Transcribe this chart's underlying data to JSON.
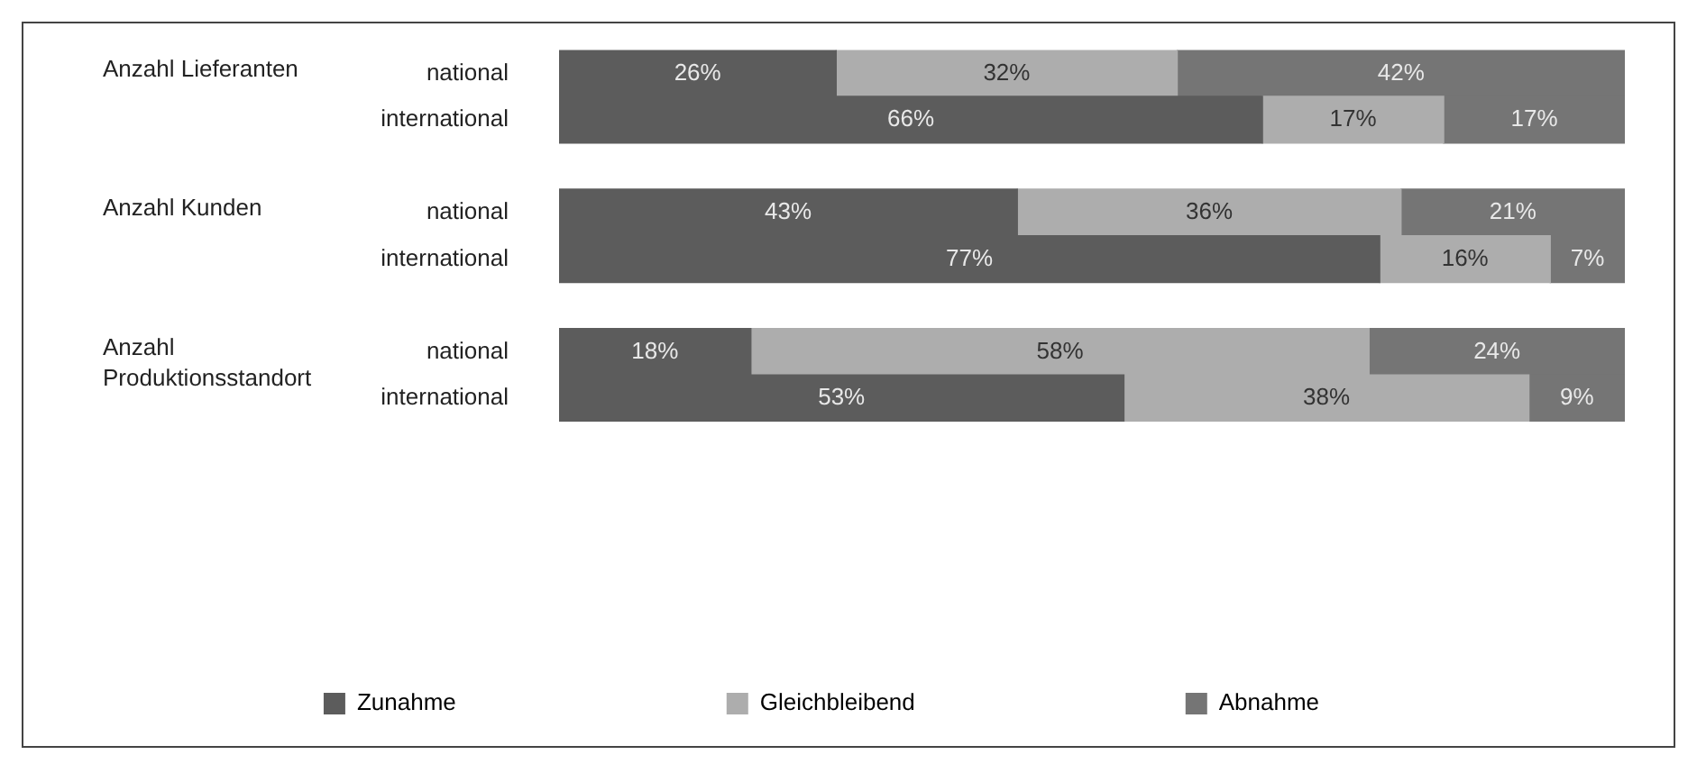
{
  "chart_data": {
    "type": "bar",
    "orientation": "horizontal",
    "stacked": true,
    "categories": [
      "national",
      "international",
      null,
      "national",
      "international",
      null,
      "national",
      "international"
    ],
    "series": [
      {
        "name": "Zunahme",
        "color": "#5c5c5c",
        "values": [
          26,
          66,
          null,
          43,
          77,
          null,
          18,
          53
        ],
        "value_labels": [
          "26%",
          "66%",
          null,
          "43%",
          "77%",
          null,
          "18%",
          "53%"
        ]
      },
      {
        "name": "Gleichbleibend",
        "color": "#adadad",
        "values": [
          32,
          17,
          null,
          36,
          16,
          null,
          58,
          38
        ],
        "value_labels": [
          "32%",
          "17%",
          null,
          "36%",
          "16%",
          null,
          "58%",
          "38%"
        ]
      },
      {
        "name": "Abnahme",
        "color": "#757575",
        "values": [
          42,
          17,
          null,
          21,
          7,
          null,
          24,
          9
        ],
        "value_labels": [
          "42%",
          "17%",
          null,
          "21%",
          "7%",
          null,
          "24%",
          "9%"
        ]
      }
    ],
    "xlim": [
      0,
      100
    ],
    "tick_labels": "y",
    "legend": "bottom",
    "annotations": [
      "Anzahl Lieferanten",
      "Anzahl Kunden",
      "Anzahl Produktionsstandort"
    ]
  }
}
